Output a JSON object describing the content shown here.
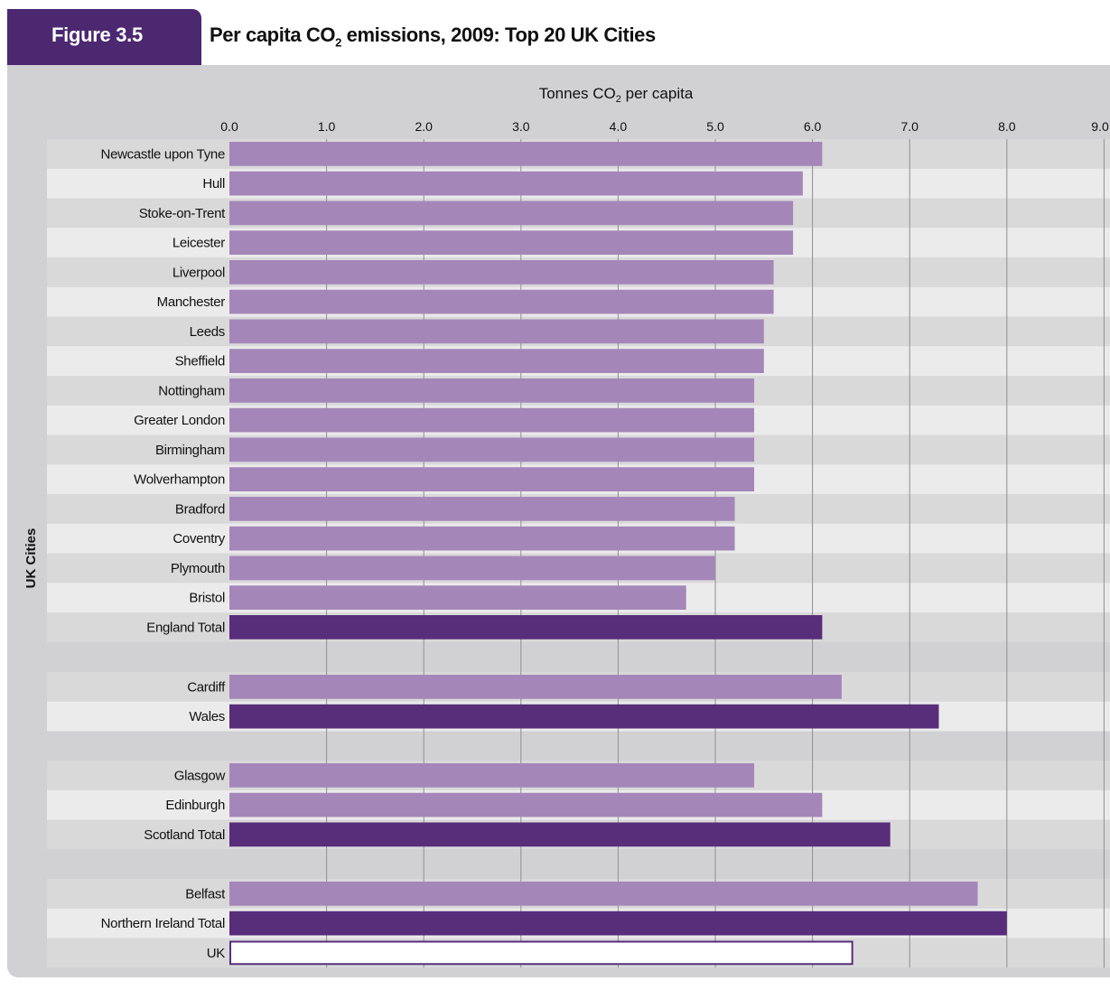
{
  "header": {
    "figure_label": "Figure 3.5",
    "title": "Per capita CO",
    "title_sub": "2",
    "title_rest": " emissions, 2009: Top 20 UK Cities"
  },
  "colors": {
    "city_bar": "#a487b8",
    "total_bar": "#582d7a",
    "uk_bar_fill": "#ffffff",
    "uk_bar_stroke": "#582d7a",
    "band_dark": "#d9d9da",
    "band_light": "#ebebec",
    "panel": "#d1d1d3",
    "gridline": "#8f8f8f",
    "tab": "#4b2870"
  },
  "chart_data": {
    "type": "bar",
    "orientation": "horizontal",
    "title": "Per capita CO2 emissions, 2009: Top 20 UK Cities",
    "xlabel": "Tonnes CO",
    "xlabel_sub": "2",
    "xlabel_rest": " per capita",
    "ylabel": "UK Cities",
    "xlim": [
      0,
      9
    ],
    "xticks": [
      "0.0",
      "1.0",
      "2.0",
      "3.0",
      "4.0",
      "5.0",
      "6.0",
      "7.0",
      "8.0",
      "9.0"
    ],
    "groups": [
      {
        "bars": [
          {
            "label": "Newcastle upon Tyne",
            "value": 6.1,
            "kind": "city"
          },
          {
            "label": "Hull",
            "value": 5.9,
            "kind": "city"
          },
          {
            "label": "Stoke-on-Trent",
            "value": 5.8,
            "kind": "city"
          },
          {
            "label": "Leicester",
            "value": 5.8,
            "kind": "city"
          },
          {
            "label": "Liverpool",
            "value": 5.6,
            "kind": "city"
          },
          {
            "label": "Manchester",
            "value": 5.6,
            "kind": "city"
          },
          {
            "label": "Leeds",
            "value": 5.5,
            "kind": "city"
          },
          {
            "label": "Sheffield",
            "value": 5.5,
            "kind": "city"
          },
          {
            "label": "Nottingham",
            "value": 5.4,
            "kind": "city"
          },
          {
            "label": "Greater London",
            "value": 5.4,
            "kind": "city"
          },
          {
            "label": "Birmingham",
            "value": 5.4,
            "kind": "city"
          },
          {
            "label": "Wolverhampton",
            "value": 5.4,
            "kind": "city"
          },
          {
            "label": "Bradford",
            "value": 5.2,
            "kind": "city"
          },
          {
            "label": "Coventry",
            "value": 5.2,
            "kind": "city"
          },
          {
            "label": "Plymouth",
            "value": 5.0,
            "kind": "city"
          },
          {
            "label": "Bristol",
            "value": 4.7,
            "kind": "city"
          },
          {
            "label": "England Total",
            "value": 6.1,
            "kind": "total"
          }
        ]
      },
      {
        "bars": [
          {
            "label": "Cardiff",
            "value": 6.3,
            "kind": "city"
          },
          {
            "label": "Wales",
            "value": 7.3,
            "kind": "total"
          }
        ]
      },
      {
        "bars": [
          {
            "label": "Glasgow",
            "value": 5.4,
            "kind": "city"
          },
          {
            "label": "Edinburgh",
            "value": 6.1,
            "kind": "city"
          },
          {
            "label": "Scotland Total",
            "value": 6.8,
            "kind": "total"
          }
        ]
      },
      {
        "bars": [
          {
            "label": "Belfast",
            "value": 7.7,
            "kind": "city"
          },
          {
            "label": "Northern Ireland Total",
            "value": 8.0,
            "kind": "total"
          },
          {
            "label": "UK",
            "value": 6.4,
            "kind": "uk"
          }
        ]
      }
    ],
    "grid": true,
    "legend": "none"
  }
}
